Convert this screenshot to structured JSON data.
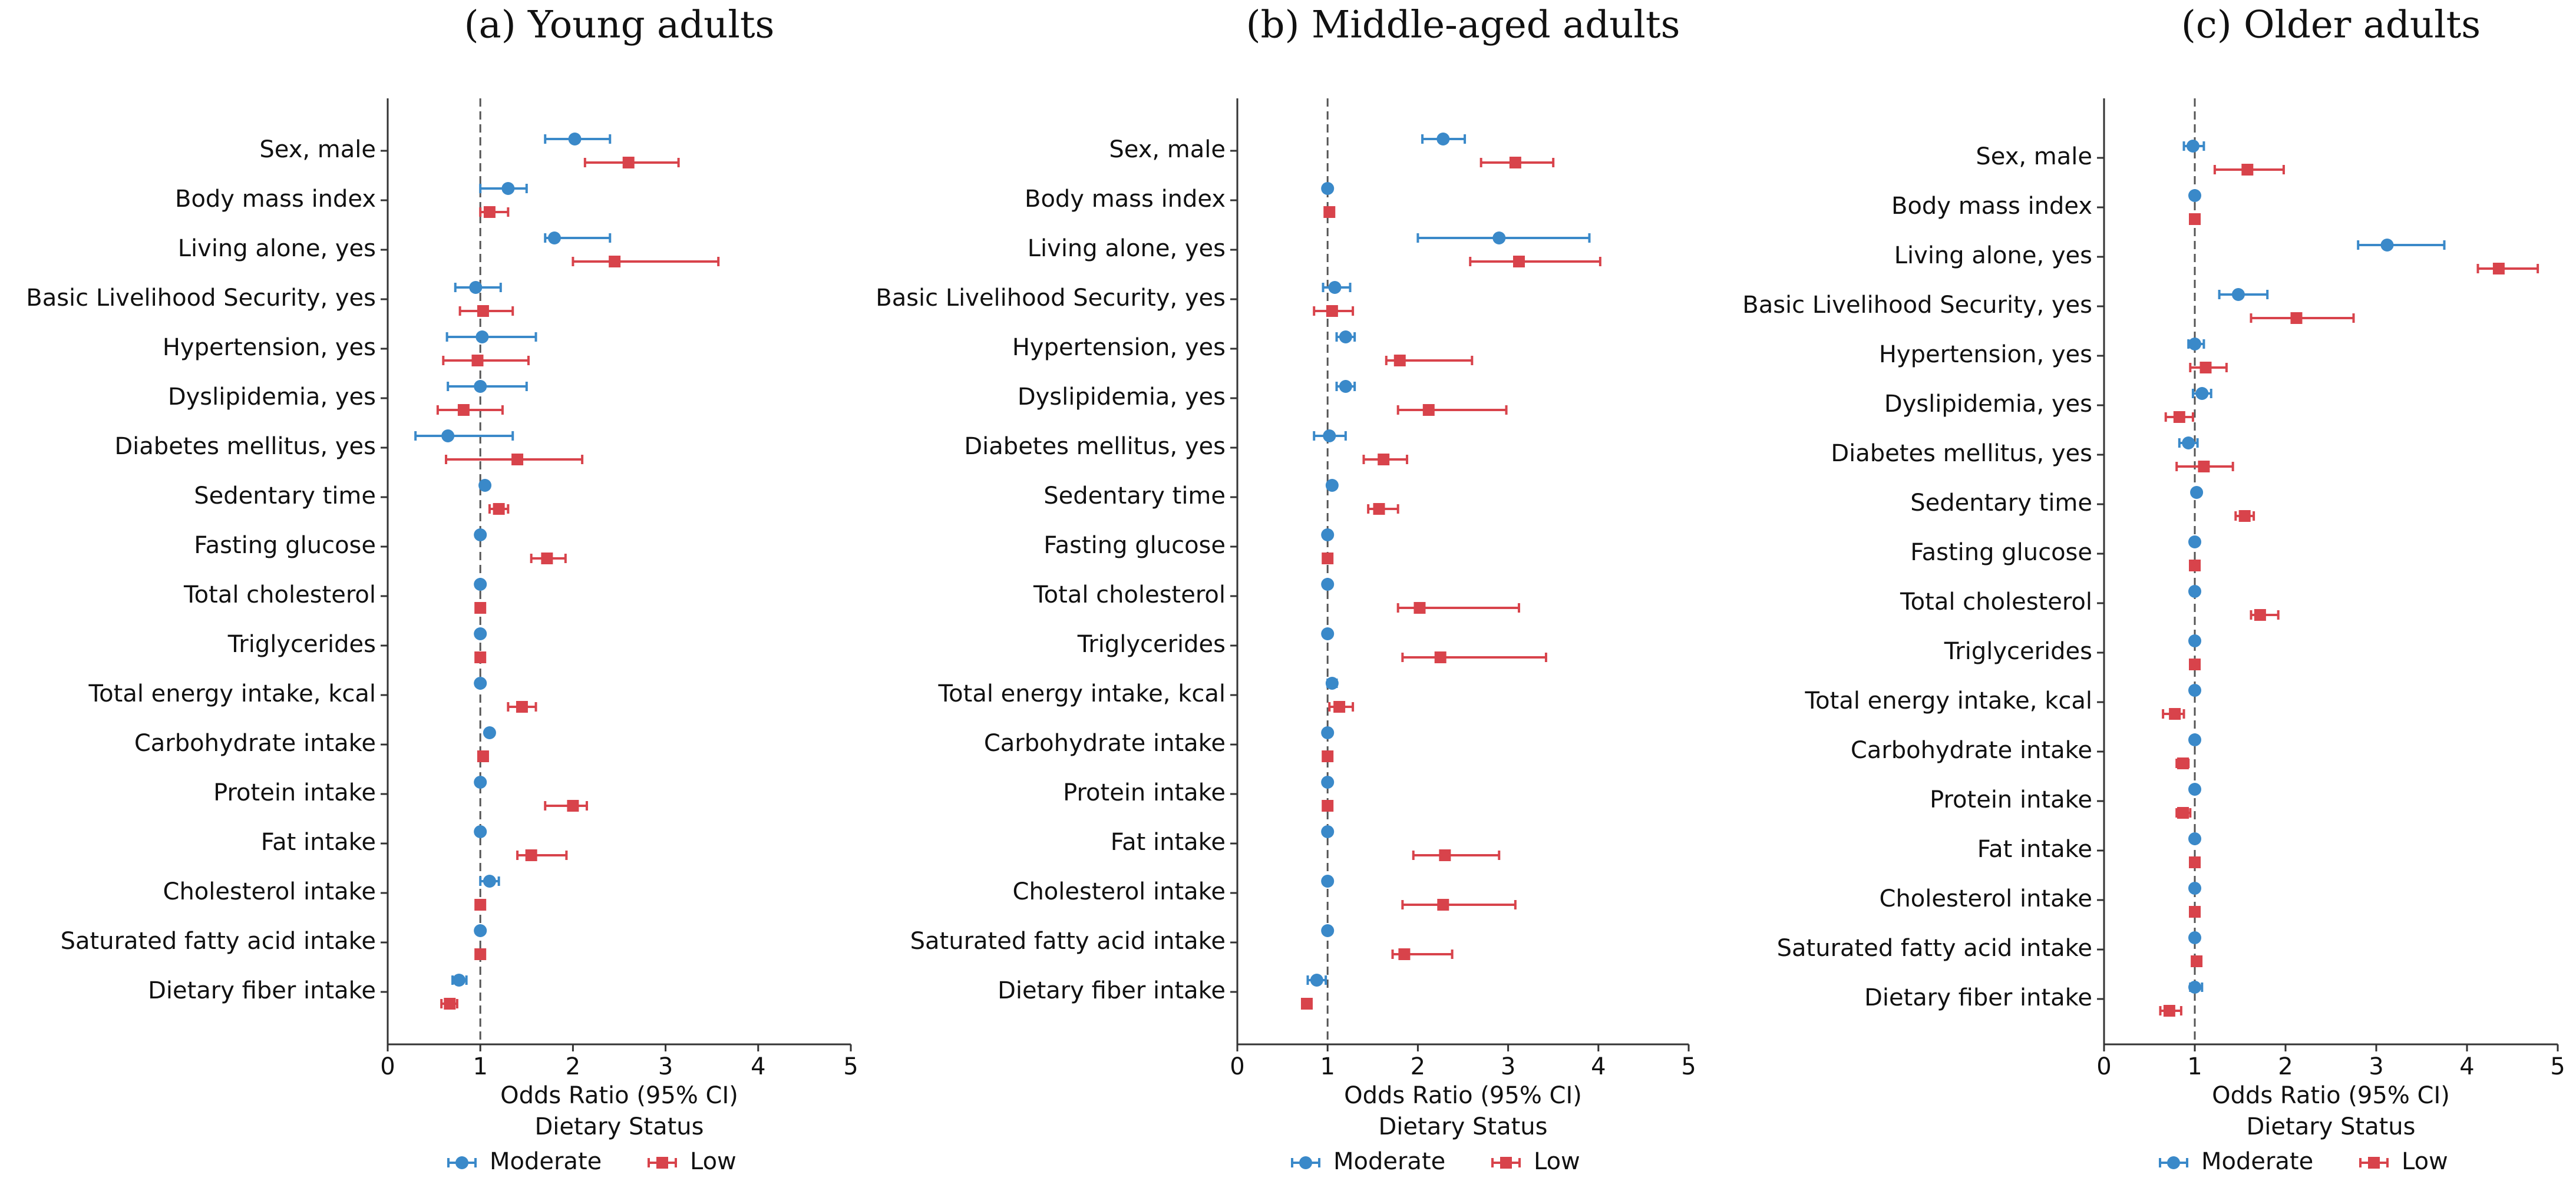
{
  "chart_data": [
    {
      "type": "forest",
      "title": "(a) Young adults",
      "xlabel": "Odds Ratio (95% CI)",
      "legend_title": "Dietary Status",
      "categories": [
        "Sex, male",
        "Body mass index",
        "Living alone, yes",
        "Basic Livelihood Security, yes",
        "Hypertension, yes",
        "Dyslipidemia, yes",
        "Diabetes mellitus, yes",
        "Sedentary time",
        "Fasting glucose",
        "Total cholesterol",
        "Triglycerides",
        "Total energy intake, kcal",
        "Carbohydrate intake",
        "Protein intake",
        "Fat intake",
        "Cholesterol intake",
        "Saturated fatty acid intake",
        "Dietary fiber intake"
      ],
      "xlim": [
        0,
        5
      ],
      "xticks": [
        0,
        1,
        2,
        3,
        4,
        5
      ],
      "reference_line": 1,
      "series": [
        {
          "name": "Moderate",
          "color": "#3a89c9",
          "marker": "circle",
          "values": [
            2.02,
            1.3,
            1.8,
            0.95,
            1.02,
            1.0,
            0.65,
            1.05,
            1.0,
            1.0,
            1.0,
            1.0,
            1.1,
            1.0,
            1.0,
            1.1,
            1.0,
            0.77
          ],
          "lower": [
            1.7,
            1.0,
            1.7,
            0.73,
            0.64,
            0.65,
            0.3,
            1.03,
            0.99,
            0.99,
            0.99,
            0.99,
            1.08,
            0.99,
            0.99,
            1.0,
            0.99,
            0.7
          ],
          "upper": [
            2.4,
            1.5,
            2.4,
            1.22,
            1.6,
            1.5,
            1.35,
            1.07,
            1.01,
            1.01,
            1.01,
            1.01,
            1.12,
            1.01,
            1.01,
            1.2,
            1.01,
            0.85
          ]
        },
        {
          "name": "Low",
          "color": "#d8434b",
          "marker": "square",
          "values": [
            2.6,
            1.1,
            2.45,
            1.03,
            0.97,
            0.82,
            1.4,
            1.2,
            1.72,
            1.0,
            1.0,
            1.45,
            1.03,
            2.0,
            1.55,
            1.0,
            1.0,
            0.67
          ],
          "lower": [
            2.13,
            1.0,
            2.0,
            0.78,
            0.6,
            0.54,
            0.63,
            1.1,
            1.55,
            0.99,
            0.99,
            1.3,
            0.98,
            1.7,
            1.4,
            0.99,
            0.99,
            0.58
          ],
          "upper": [
            3.14,
            1.3,
            3.57,
            1.35,
            1.52,
            1.24,
            2.1,
            1.3,
            1.92,
            1.01,
            1.01,
            1.6,
            1.08,
            2.15,
            1.93,
            1.01,
            1.01,
            0.75
          ]
        }
      ]
    },
    {
      "type": "forest",
      "title": "(b) Middle-aged adults",
      "xlabel": "Odds Ratio (95% CI)",
      "legend_title": "Dietary Status",
      "categories": [
        "Sex, male",
        "Body mass index",
        "Living alone, yes",
        "Basic Livelihood Security, yes",
        "Hypertension, yes",
        "Dyslipidemia, yes",
        "Diabetes mellitus, yes",
        "Sedentary time",
        "Fasting glucose",
        "Total cholesterol",
        "Triglycerides",
        "Total energy intake, kcal",
        "Carbohydrate intake",
        "Protein intake",
        "Fat intake",
        "Cholesterol intake",
        "Saturated fatty acid intake",
        "Dietary fiber intake"
      ],
      "xlim": [
        0,
        5
      ],
      "xticks": [
        0,
        1,
        2,
        3,
        4,
        5
      ],
      "reference_line": 1,
      "series": [
        {
          "name": "Moderate",
          "color": "#3a89c9",
          "marker": "circle",
          "values": [
            2.28,
            1.0,
            2.9,
            1.08,
            1.2,
            1.2,
            1.02,
            1.05,
            1.0,
            1.0,
            1.0,
            1.05,
            1.0,
            1.0,
            1.0,
            1.0,
            1.0,
            0.88
          ],
          "lower": [
            2.05,
            0.99,
            2.0,
            0.95,
            1.1,
            1.1,
            0.85,
            1.02,
            0.99,
            0.99,
            0.99,
            1.0,
            0.99,
            0.99,
            0.99,
            0.99,
            0.99,
            0.78
          ],
          "upper": [
            2.52,
            1.01,
            3.9,
            1.25,
            1.3,
            1.3,
            1.2,
            1.07,
            1.01,
            1.01,
            1.01,
            1.1,
            1.01,
            1.01,
            1.01,
            1.01,
            1.01,
            0.98
          ]
        },
        {
          "name": "Low",
          "color": "#d8434b",
          "marker": "square",
          "values": [
            3.08,
            1.02,
            3.12,
            1.05,
            1.8,
            2.12,
            1.62,
            1.57,
            1.0,
            2.02,
            2.25,
            1.13,
            1.0,
            1.0,
            2.3,
            2.28,
            1.85,
            0.77
          ],
          "lower": [
            2.7,
            1.0,
            2.58,
            0.85,
            1.65,
            1.78,
            1.4,
            1.45,
            0.99,
            1.78,
            1.83,
            1.02,
            0.99,
            0.99,
            1.95,
            1.83,
            1.72,
            0.72
          ],
          "upper": [
            3.5,
            1.04,
            4.02,
            1.28,
            2.6,
            2.98,
            1.88,
            1.78,
            1.01,
            3.12,
            3.42,
            1.28,
            1.01,
            1.01,
            2.9,
            3.08,
            2.38,
            0.82
          ]
        }
      ]
    },
    {
      "type": "forest",
      "title": "(c) Older adults",
      "xlabel": "Odds Ratio (95% CI)",
      "legend_title": "Dietary Status",
      "categories": [
        "Sex, male",
        "Body mass index",
        "Living alone, yes",
        "Basic Livelihood Security, yes",
        "Hypertension, yes",
        "Dyslipidemia, yes",
        "Diabetes mellitus, yes",
        "Sedentary time",
        "Fasting glucose",
        "Total cholesterol",
        "Triglycerides",
        "Total energy intake, kcal",
        "Carbohydrate intake",
        "Protein intake",
        "Fat intake",
        "Cholesterol intake",
        "Saturated fatty acid intake",
        "Dietary fiber intake"
      ],
      "xlim": [
        0,
        5
      ],
      "xticks": [
        0,
        1,
        2,
        3,
        4,
        5
      ],
      "reference_line": 1,
      "series": [
        {
          "name": "Moderate",
          "color": "#3a89c9",
          "marker": "circle",
          "values": [
            0.98,
            1.0,
            3.12,
            1.48,
            1.0,
            1.08,
            0.93,
            1.02,
            1.0,
            1.0,
            1.0,
            1.0,
            1.0,
            1.0,
            1.0,
            1.0,
            1.0,
            1.0
          ],
          "lower": [
            0.88,
            0.99,
            2.8,
            1.27,
            0.93,
            0.98,
            0.83,
            1.0,
            0.99,
            0.99,
            0.99,
            0.99,
            0.99,
            0.99,
            0.99,
            0.99,
            0.99,
            0.95
          ],
          "upper": [
            1.1,
            1.01,
            3.75,
            1.8,
            1.1,
            1.18,
            1.03,
            1.04,
            1.01,
            1.01,
            1.01,
            1.01,
            1.01,
            1.01,
            1.01,
            1.01,
            1.01,
            1.08
          ]
        },
        {
          "name": "Low",
          "color": "#d8434b",
          "marker": "square",
          "values": [
            1.58,
            1.0,
            4.35,
            2.12,
            1.12,
            0.83,
            1.1,
            1.55,
            1.0,
            1.72,
            1.0,
            0.78,
            0.87,
            0.87,
            1.0,
            1.0,
            1.02,
            0.72
          ],
          "lower": [
            1.22,
            0.99,
            4.12,
            1.62,
            0.95,
            0.68,
            0.8,
            1.45,
            0.99,
            1.62,
            0.99,
            0.65,
            0.8,
            0.8,
            0.99,
            0.99,
            1.0,
            0.62
          ],
          "upper": [
            1.98,
            1.01,
            4.78,
            2.75,
            1.35,
            0.98,
            1.42,
            1.65,
            1.01,
            1.92,
            1.01,
            0.88,
            0.93,
            0.95,
            1.01,
            1.01,
            1.04,
            0.85
          ]
        }
      ]
    }
  ]
}
